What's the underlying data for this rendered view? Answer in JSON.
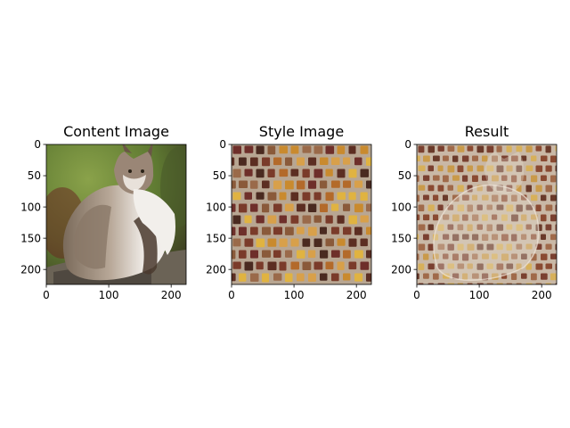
{
  "figure": {
    "panels": [
      {
        "title": "Content Image",
        "kind": "photo-cat",
        "colors": {
          "bg_green": "#6f8a3a",
          "bg_dark": "#3b3a22",
          "fur_light": "#ece7e2",
          "fur_mid": "#b9a898",
          "fur_dark": "#5a4a3c",
          "rock": "#6b6356"
        }
      },
      {
        "title": "Style Image",
        "kind": "mosaic",
        "colors": {
          "grout": "#b8a692",
          "tiles": [
            "#7a3b2a",
            "#c98a2e",
            "#5c2e22",
            "#e0b341",
            "#8a5a3a",
            "#6e2f2a",
            "#b36a2a",
            "#4a2a20",
            "#d8a04a",
            "#9a6a4a"
          ]
        }
      },
      {
        "title": "Result",
        "kind": "stylized-cat",
        "colors": {
          "grout": "#c9b8a6",
          "tiles": [
            "#8a4a32",
            "#c99a4a",
            "#6a3a2a",
            "#d7b05a",
            "#a06a4a",
            "#7a4030"
          ]
        }
      }
    ]
  },
  "chart_data": [
    {
      "type": "heatmap",
      "title": "Content Image",
      "xlim": [
        0,
        224
      ],
      "ylim": [
        224,
        0
      ],
      "xticks": [
        0,
        100,
        200
      ],
      "yticks": [
        0,
        50,
        100,
        150,
        200
      ],
      "xlabel": "",
      "ylabel": ""
    },
    {
      "type": "heatmap",
      "title": "Style Image",
      "xlim": [
        0,
        224
      ],
      "ylim": [
        224,
        0
      ],
      "xticks": [
        0,
        100,
        200
      ],
      "yticks": [
        0,
        50,
        100,
        150,
        200
      ],
      "xlabel": "",
      "ylabel": ""
    },
    {
      "type": "heatmap",
      "title": "Result",
      "xlim": [
        0,
        224
      ],
      "ylim": [
        224,
        0
      ],
      "xticks": [
        0,
        100,
        200
      ],
      "yticks": [
        0,
        50,
        100,
        150,
        200
      ],
      "xlabel": "",
      "ylabel": ""
    }
  ]
}
